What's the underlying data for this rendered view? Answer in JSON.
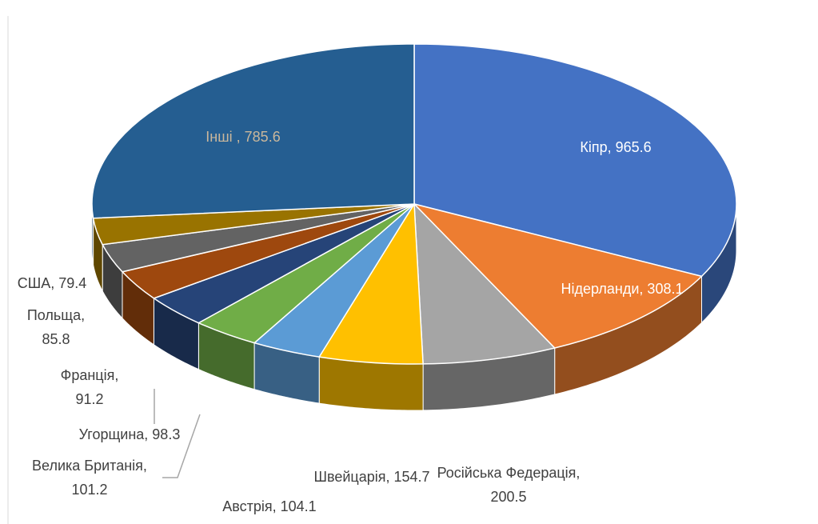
{
  "chart_data": {
    "type": "pie3d",
    "values": [
      965.6,
      308.1,
      200.5,
      154.7,
      104.1,
      101.2,
      98.3,
      91.2,
      85.8,
      79.4,
      785.6
    ],
    "value_labels": [
      "Кіпр, 965.6",
      "Нідерланди, 308.1",
      "Російська Федерація, 200.5",
      "Швейцарія, 154.7",
      "Австрія, 104.1",
      "Велика Британія, 101.2",
      "Угорщина, 98.3",
      "Франція, 91.2",
      "Польща, 85.8",
      "США, 79.4",
      "Інші , 785.6"
    ],
    "colors": [
      "#4472c4",
      "#ed7d31",
      "#a5a5a5",
      "#ffc000",
      "#5b9bd5",
      "#70ad47",
      "#264478",
      "#9e480e",
      "#636363",
      "#997300",
      "#255e91"
    ]
  }
}
